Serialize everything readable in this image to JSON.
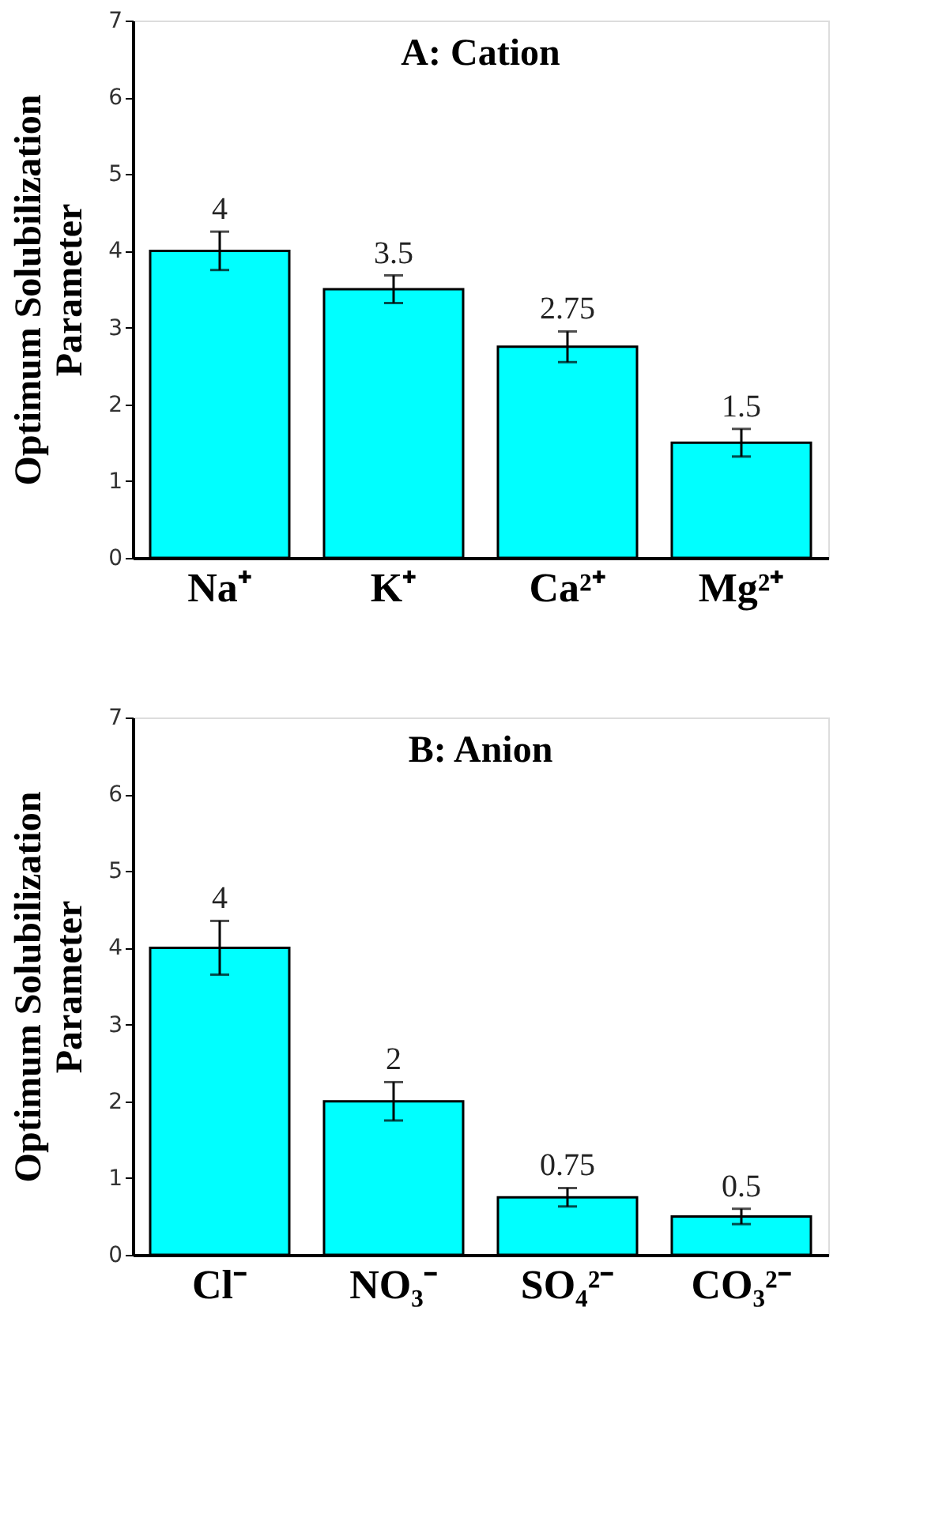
{
  "chart_data": [
    {
      "type": "bar",
      "title": "A: Cation",
      "ylabel": "Optimum Solubilization\nParameter",
      "categories": [
        "Na⁺",
        "K⁺",
        "Ca²⁺",
        "Mg²⁺"
      ],
      "values": [
        4,
        3.5,
        2.75,
        1.5
      ],
      "errors": [
        0.25,
        0.18,
        0.2,
        0.18
      ],
      "color": "#00ffff",
      "ylim": [
        0,
        7
      ],
      "yticks": [
        0,
        1,
        2,
        3,
        4,
        5,
        6,
        7
      ],
      "data_labels": true,
      "grid": false
    },
    {
      "type": "bar",
      "title": "B: Anion",
      "ylabel": "Optimum Solubilization\nParameter",
      "categories": [
        "Cl⁻",
        "NO₃⁻",
        "SO₄²⁻",
        "CO₃²⁻"
      ],
      "values": [
        4,
        2,
        0.75,
        0.5
      ],
      "errors": [
        0.35,
        0.25,
        0.12,
        0.1
      ],
      "color": "#00ffff",
      "ylim": [
        0,
        7
      ],
      "yticks": [
        0,
        1,
        2,
        3,
        4,
        5,
        6,
        7
      ],
      "data_labels": true,
      "grid": false
    }
  ]
}
